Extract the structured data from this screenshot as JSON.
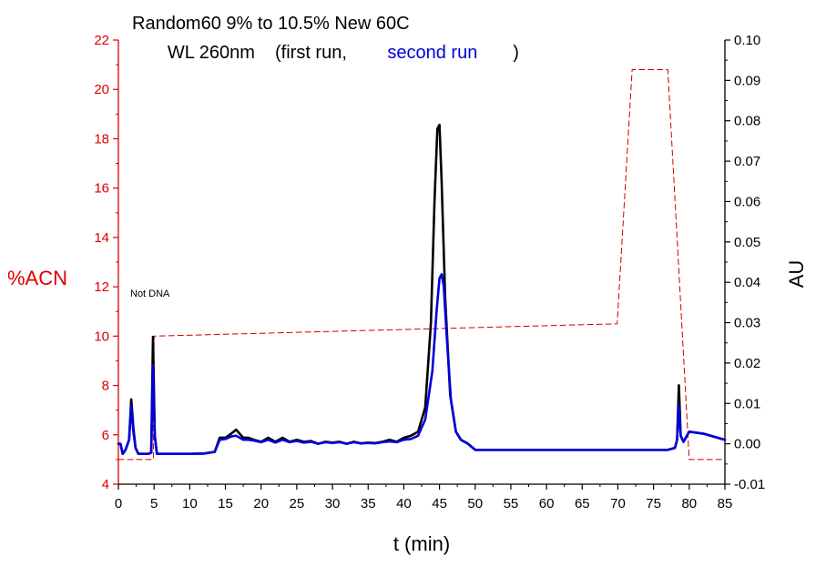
{
  "chart_data": {
    "type": "line",
    "title_line1": "Random60 9% to 10.5% New 60C",
    "title_line2_prefix": "WL 260nm",
    "legend_open": "(first run, ",
    "legend_second": "second run",
    "legend_close": ")",
    "annotation": "Not DNA",
    "xlabel": "t (min)",
    "ylabel_left": "%ACN",
    "ylabel_right": "AU",
    "xlim": [
      0,
      85
    ],
    "ylim_left": [
      4,
      22
    ],
    "ylim_right": [
      -0.01,
      0.1
    ],
    "x_ticks": [
      "0",
      "5",
      "10",
      "15",
      "20",
      "25",
      "30",
      "35",
      "40",
      "45",
      "50",
      "55",
      "60",
      "65",
      "70",
      "75",
      "80",
      "85"
    ],
    "y_left_ticks": [
      "4",
      "6",
      "8",
      "10",
      "12",
      "14",
      "16",
      "18",
      "20",
      "22"
    ],
    "y_right_ticks": [
      "-0.01",
      "0.00",
      "0.01",
      "0.02",
      "0.03",
      "0.04",
      "0.05",
      "0.06",
      "0.07",
      "0.08",
      "0.09",
      "0.10"
    ],
    "colors": {
      "left_axis": "#dd0000",
      "right_axis": "#000000",
      "first_run": "#000000",
      "second_run": "#0000dd",
      "gradient": "#cc0000"
    },
    "series": [
      {
        "name": "%ACN",
        "axis": "left",
        "style": "dashed",
        "x": [
          0,
          4.9,
          5.0,
          69.9,
          72.0,
          77.0,
          80.0,
          85.0
        ],
        "y": [
          5.0,
          5.0,
          10.0,
          10.5,
          20.8,
          20.8,
          5.0,
          5.0
        ]
      },
      {
        "name": "first run",
        "axis": "right",
        "x": [
          0,
          0.3,
          0.6,
          1.0,
          1.5,
          1.8,
          2.1,
          2.4,
          2.8,
          3.5,
          4.2,
          4.6,
          4.85,
          5.1,
          5.4,
          6.0,
          8,
          10,
          12,
          13.5,
          14.2,
          15,
          15.8,
          16.5,
          17,
          17.5,
          18.2,
          19,
          20,
          21,
          22,
          23,
          24,
          25,
          26,
          27,
          28,
          29,
          30,
          31,
          32,
          33,
          34,
          35,
          36,
          37,
          38,
          39,
          40,
          41,
          42,
          43,
          43.8,
          44.3,
          44.7,
          45.0,
          45.3,
          45.8,
          46.5,
          47.3,
          48,
          49,
          50,
          52,
          55,
          60,
          65,
          70,
          75,
          77,
          78,
          78.3,
          78.55,
          78.8,
          79.2,
          80,
          82,
          85
        ],
        "y": [
          0.0,
          0.0,
          -0.0025,
          -0.0015,
          0.001,
          0.011,
          0.004,
          -0.001,
          -0.0025,
          -0.0025,
          -0.0025,
          -0.0022,
          0.0265,
          0.002,
          -0.0025,
          -0.0025,
          -0.0025,
          -0.0025,
          -0.0024,
          -0.002,
          0.0015,
          0.0015,
          0.0025,
          0.0035,
          0.0025,
          0.0015,
          0.0015,
          0.001,
          0.0005,
          0.0015,
          0.0005,
          0.0015,
          0.0005,
          0.001,
          0.0005,
          0.0007,
          0.0,
          0.0005,
          0.0003,
          0.0005,
          0.0,
          0.0005,
          0.0001,
          0.0003,
          0.0002,
          0.0005,
          0.001,
          0.0005,
          0.0015,
          0.002,
          0.003,
          0.009,
          0.03,
          0.06,
          0.078,
          0.079,
          0.065,
          0.036,
          0.012,
          0.003,
          0.001,
          0.0,
          -0.0015,
          -0.0015,
          -0.0015,
          -0.0015,
          -0.0015,
          -0.0015,
          -0.0015,
          -0.0015,
          -0.001,
          0.001,
          0.0145,
          0.002,
          0.0005,
          0.003,
          0.0025,
          0.001
        ]
      },
      {
        "name": "second run",
        "axis": "right",
        "x": [
          0,
          0.3,
          0.6,
          1.0,
          1.5,
          1.8,
          2.1,
          2.4,
          2.8,
          3.5,
          4.2,
          4.6,
          4.85,
          5.1,
          5.4,
          6.0,
          8,
          10,
          12,
          13.5,
          14.2,
          15,
          15.8,
          16.5,
          17,
          17.5,
          18.2,
          19,
          20,
          21,
          22,
          23,
          24,
          25,
          26,
          27,
          28,
          29,
          30,
          31,
          32,
          33,
          34,
          35,
          36,
          37,
          38,
          39,
          40,
          41,
          42,
          43,
          44,
          44.6,
          45.0,
          45.3,
          45.6,
          46.0,
          46.6,
          47.3,
          48,
          49,
          50,
          52,
          55,
          60,
          65,
          70,
          75,
          77,
          78,
          78.3,
          78.5,
          78.8,
          79.2,
          80,
          82,
          85
        ],
        "y": [
          0.0,
          0.0,
          -0.0025,
          -0.0015,
          0.001,
          0.0095,
          0.003,
          -0.001,
          -0.0025,
          -0.0025,
          -0.0025,
          -0.0022,
          0.0195,
          0.002,
          -0.0025,
          -0.0025,
          -0.0025,
          -0.0025,
          -0.0024,
          -0.002,
          0.001,
          0.0012,
          0.0018,
          0.002,
          0.0015,
          0.001,
          0.001,
          0.0008,
          0.0004,
          0.001,
          0.0003,
          0.001,
          0.0004,
          0.0007,
          0.0003,
          0.0005,
          0.0,
          0.0004,
          0.0002,
          0.0004,
          0.0,
          0.0004,
          0.0001,
          0.0002,
          0.0001,
          0.0004,
          0.0006,
          0.0004,
          0.001,
          0.0012,
          0.002,
          0.006,
          0.018,
          0.033,
          0.041,
          0.042,
          0.039,
          0.027,
          0.011,
          0.003,
          0.001,
          0.0,
          -0.0015,
          -0.0015,
          -0.0015,
          -0.0015,
          -0.0015,
          -0.0015,
          -0.0015,
          -0.0015,
          -0.001,
          0.001,
          0.0095,
          0.002,
          0.0005,
          0.003,
          0.0025,
          0.001
        ]
      }
    ]
  }
}
